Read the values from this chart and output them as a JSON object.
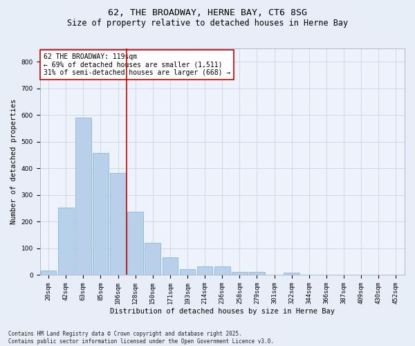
{
  "title": "62, THE BROADWAY, HERNE BAY, CT6 8SG",
  "subtitle": "Size of property relative to detached houses in Herne Bay",
  "xlabel": "Distribution of detached houses by size in Herne Bay",
  "ylabel": "Number of detached properties",
  "categories": [
    "20sqm",
    "42sqm",
    "63sqm",
    "85sqm",
    "106sqm",
    "128sqm",
    "150sqm",
    "171sqm",
    "193sqm",
    "214sqm",
    "236sqm",
    "258sqm",
    "279sqm",
    "301sqm",
    "322sqm",
    "344sqm",
    "366sqm",
    "387sqm",
    "409sqm",
    "430sqm",
    "452sqm"
  ],
  "values": [
    18,
    252,
    590,
    457,
    383,
    237,
    120,
    67,
    22,
    32,
    32,
    11,
    11,
    0,
    9,
    0,
    0,
    0,
    0,
    0,
    0
  ],
  "bar_color": "#b8d0ea",
  "bar_edge_color": "#7aadd4",
  "vline_x": 4.5,
  "vline_color": "#cc0000",
  "annotation_text": "62 THE BROADWAY: 119sqm\n← 69% of detached houses are smaller (1,511)\n31% of semi-detached houses are larger (668) →",
  "annotation_box_color": "#ffffff",
  "annotation_box_edge_color": "#cc0000",
  "footnote": "Contains HM Land Registry data © Crown copyright and database right 2025.\nContains public sector information licensed under the Open Government Licence v3.0.",
  "bg_color": "#e8eef8",
  "plot_bg_color": "#eef2fa",
  "grid_color": "#c8d4e8",
  "ylim": [
    0,
    850
  ],
  "yticks": [
    0,
    100,
    200,
    300,
    400,
    500,
    600,
    700,
    800
  ],
  "title_fontsize": 9.5,
  "subtitle_fontsize": 8.5,
  "axis_label_fontsize": 7.5,
  "tick_fontsize": 6.5,
  "annotation_fontsize": 7,
  "footnote_fontsize": 5.5
}
